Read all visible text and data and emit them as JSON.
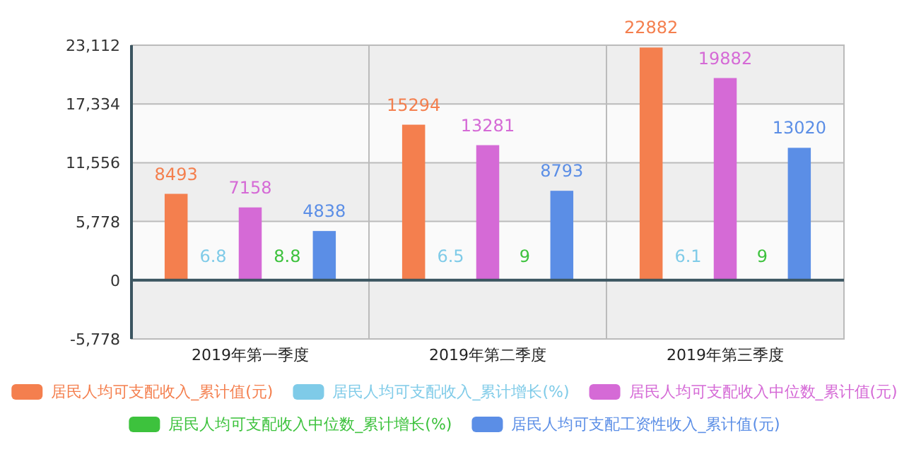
{
  "chart_data": {
    "type": "bar",
    "categories": [
      "2019年第一季度",
      "2019年第二季度",
      "2019年第三季度"
    ],
    "series": [
      {
        "name": "居民人均可支配收入_累计值(元)",
        "color": "#f47f4e",
        "values": [
          8493,
          15294,
          22882
        ]
      },
      {
        "name": "居民人均可支配收入_累计增长(%)",
        "color": "#7fcbe8",
        "values": [
          6.8,
          6.5,
          6.1
        ]
      },
      {
        "name": "居民人均可支配收入中位数_累计值(元)",
        "color": "#d56ad6",
        "values": [
          7158,
          13281,
          19882
        ]
      },
      {
        "name": "居民人均可支配收入中位数_累计增长(%)",
        "color": "#3dc23d",
        "values": [
          8.8,
          9,
          9
        ]
      },
      {
        "name": "居民人均可支配工资性收入_累计值(元)",
        "color": "#5b8ee6",
        "values": [
          4838,
          8793,
          13020
        ]
      }
    ],
    "ylim": [
      -5778,
      23112
    ],
    "yticks": [
      {
        "value": -5778,
        "label": "-5,778"
      },
      0,
      {
        "value": 5778,
        "label": "5,778"
      },
      {
        "value": 11556,
        "label": "11,556"
      },
      {
        "value": 17334,
        "label": "17,334"
      },
      {
        "value": 23112,
        "label": "23,112"
      }
    ],
    "grid": true,
    "legend": "bottom",
    "data_labels": true
  }
}
